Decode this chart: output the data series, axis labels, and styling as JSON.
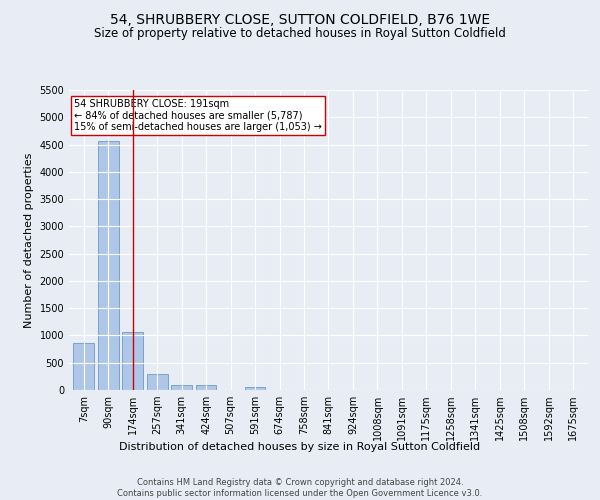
{
  "title": "54, SHRUBBERY CLOSE, SUTTON COLDFIELD, B76 1WE",
  "subtitle": "Size of property relative to detached houses in Royal Sutton Coldfield",
  "xlabel": "Distribution of detached houses by size in Royal Sutton Coldfield",
  "ylabel": "Number of detached properties",
  "categories": [
    "7sqm",
    "90sqm",
    "174sqm",
    "257sqm",
    "341sqm",
    "424sqm",
    "507sqm",
    "591sqm",
    "674sqm",
    "758sqm",
    "841sqm",
    "924sqm",
    "1008sqm",
    "1091sqm",
    "1175sqm",
    "1258sqm",
    "1341sqm",
    "1425sqm",
    "1508sqm",
    "1592sqm",
    "1675sqm"
  ],
  "values": [
    870,
    4560,
    1060,
    290,
    95,
    85,
    0,
    55,
    0,
    0,
    0,
    0,
    0,
    0,
    0,
    0,
    0,
    0,
    0,
    0,
    0
  ],
  "bar_color": "#aec6e8",
  "bar_edge_color": "#5b8db8",
  "vline_x": 2.0,
  "vline_color": "#cc0000",
  "annotation_box_color": "#cc0000",
  "annotation_text_line1": "54 SHRUBBERY CLOSE: 191sqm",
  "annotation_text_line2": "← 84% of detached houses are smaller (5,787)",
  "annotation_text_line3": "15% of semi-detached houses are larger (1,053) →",
  "ylim": [
    0,
    5500
  ],
  "yticks": [
    0,
    500,
    1000,
    1500,
    2000,
    2500,
    3000,
    3500,
    4000,
    4500,
    5000,
    5500
  ],
  "footer_line1": "Contains HM Land Registry data © Crown copyright and database right 2024.",
  "footer_line2": "Contains public sector information licensed under the Open Government Licence v3.0.",
  "bg_color": "#e8edf5",
  "plot_bg_color": "#e8edf5",
  "title_fontsize": 10,
  "subtitle_fontsize": 8.5,
  "axis_label_fontsize": 8,
  "tick_fontsize": 7,
  "annotation_fontsize": 7,
  "footer_fontsize": 6
}
